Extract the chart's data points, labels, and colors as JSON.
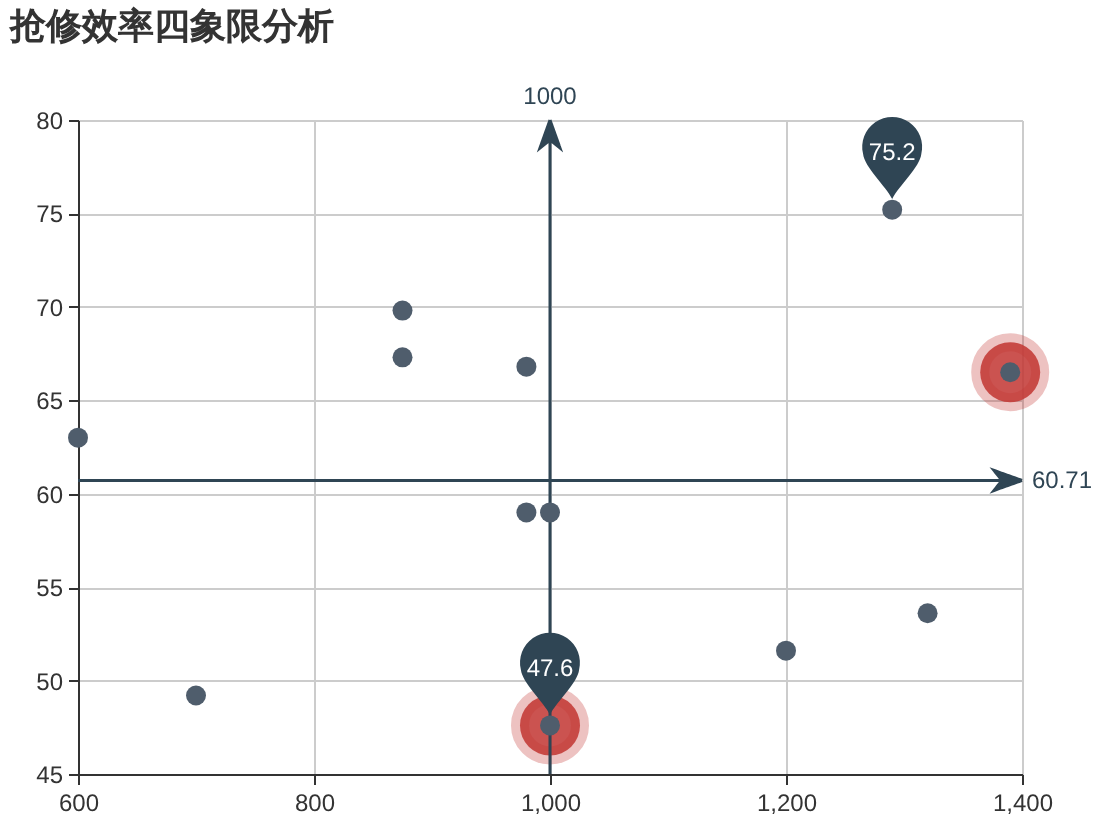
{
  "chart_data": {
    "type": "scatter",
    "title": "抢修效率四象限分析",
    "xlim": [
      600,
      1400
    ],
    "xticks": [
      600,
      800,
      {
        "value": 1000,
        "label": "1,000"
      },
      {
        "value": 1200,
        "label": "1,200"
      },
      {
        "value": 1400,
        "label": "1,400"
      }
    ],
    "ylim": [
      45,
      80
    ],
    "yticks": [
      45,
      50,
      55,
      60,
      65,
      70,
      75,
      80
    ],
    "grid": true,
    "marker": "circle",
    "series": [
      {
        "color": "#4f5d6c",
        "x": [
          600,
          700,
          875,
          875,
          980,
          980,
          1000,
          1000,
          1200,
          1290,
          1320,
          1390
        ],
        "values": [
          63.0,
          49.2,
          69.8,
          67.3,
          66.8,
          59.0,
          59.0,
          47.6,
          51.6,
          75.2,
          53.6,
          66.5
        ]
      },
      {
        "color": "#c23531",
        "x": [
          1390,
          1000
        ],
        "values": [
          66.5,
          47.6
        ]
      }
    ],
    "ref_lines": [
      {
        "axis": "x",
        "value": 1000,
        "label": "1000",
        "color": "#2f4554"
      },
      {
        "axis": "y",
        "value": 60.71,
        "label": "60.71",
        "color": "#2f4554"
      }
    ],
    "annotations": [
      {
        "text": "75.2",
        "x": 1290,
        "y": 75.2
      },
      {
        "text": "47.6",
        "x": 1000,
        "y": 47.6
      }
    ]
  }
}
